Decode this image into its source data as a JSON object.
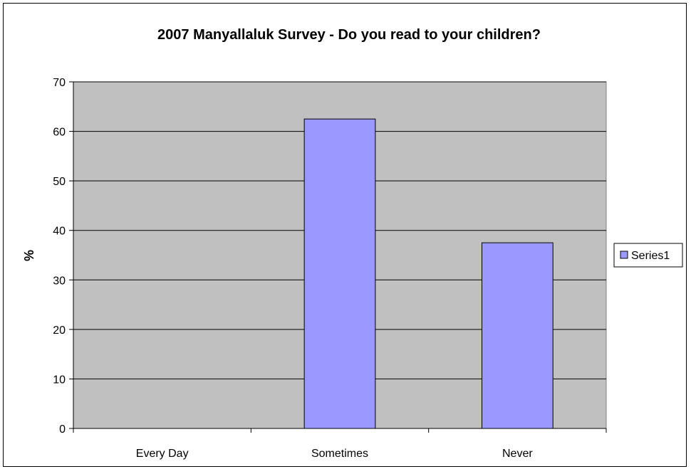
{
  "chart_data": {
    "type": "bar",
    "title": "2007 Manyallaluk Survey - Do you read to your children?",
    "xlabel": "",
    "ylabel": "%",
    "categories": [
      "Every Day",
      "Sometimes",
      "Never"
    ],
    "series": [
      {
        "name": "Series1",
        "values": [
          0,
          62.5,
          37.5
        ]
      }
    ],
    "ylim": [
      0,
      70
    ],
    "yticks": [
      0,
      10,
      20,
      30,
      40,
      50,
      60,
      70
    ],
    "grid": true,
    "legend": "right",
    "colors": {
      "plot_background": "#c0c0c0",
      "bar_fill": "#9999ff",
      "bar_stroke": "#000000",
      "gridline": "#000000"
    }
  }
}
